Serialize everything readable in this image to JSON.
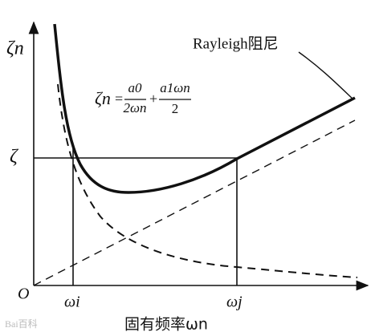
{
  "labels": {
    "y_axis": "ζn",
    "zeta": "ζ",
    "origin": "O",
    "omega_i": "ωi",
    "omega_j": "ωj",
    "x_axis": "固有频率ωn",
    "curve": "Rayleigh阻尼",
    "watermark": "Bai百科"
  },
  "formula": {
    "lhs": "ζn",
    "eq": "=",
    "term1_num": "a0",
    "term1_den": "2ωn",
    "plus": "+",
    "term2_num": "a1ωn",
    "term2_den": "2"
  }
}
